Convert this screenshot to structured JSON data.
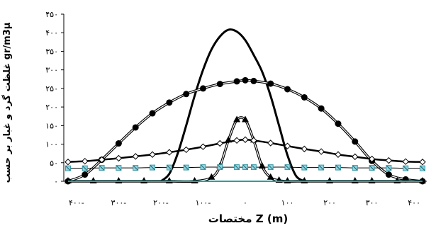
{
  "chart_data": {
    "type": "line",
    "title": "",
    "xlabel": "مختصات Z (m)",
    "ylabel": "غلظت گرد و غبار بر حسب gr/m3µ",
    "xlim": [
      -430,
      430
    ],
    "ylim": [
      0,
      450
    ],
    "x_ticks": [
      -400,
      -300,
      -200,
      -100,
      0,
      100,
      200,
      300,
      400
    ],
    "x_tick_labels": [
      "۴۰۰-",
      "۳۰۰-",
      "۲۰۰-",
      "۱۰۰-",
      "۰",
      "۱۰۰",
      "۲۰۰",
      "۳۰۰",
      "۴۰۰"
    ],
    "y_ticks": [
      0,
      50,
      100,
      150,
      200,
      250,
      300,
      350,
      400,
      450
    ],
    "y_tick_labels": [
      "۰",
      "۵۰",
      "۱۰۰",
      "۱۵۰",
      "۲۰۰",
      "۲۵۰",
      "۳۰۰",
      "۳۵۰",
      "۴۰۰",
      "۴۵۰"
    ],
    "grid": false,
    "legend": "none",
    "series": [
      {
        "style": "thick-line",
        "color": "#000000",
        "x": [
          -200,
          -180,
          -160,
          -140,
          -120,
          -100,
          -80,
          -60,
          -40,
          -20,
          0,
          20,
          40,
          60,
          80,
          100,
          120,
          140
        ],
        "values": [
          0,
          20,
          75,
          150,
          230,
          300,
          355,
          390,
          408,
          403,
          380,
          340,
          295,
          230,
          150,
          70,
          15,
          0
        ]
      },
      {
        "style": "double-line-circle",
        "color": "#000000",
        "x": [
          -420,
          -380,
          -340,
          -300,
          -260,
          -220,
          -180,
          -140,
          -100,
          -60,
          -20,
          0,
          20,
          60,
          100,
          140,
          180,
          220,
          260,
          300,
          340,
          380,
          420
        ],
        "values": [
          0,
          18,
          58,
          102,
          145,
          183,
          212,
          235,
          250,
          262,
          269,
          272,
          270,
          263,
          248,
          226,
          196,
          155,
          107,
          55,
          18,
          5,
          0
        ]
      },
      {
        "style": "double-line-triangle",
        "color": "#000000",
        "x": [
          -420,
          -360,
          -300,
          -240,
          -180,
          -120,
          -80,
          -60,
          -40,
          -20,
          0,
          20,
          40,
          60,
          80,
          100,
          140,
          200,
          260,
          300,
          360,
          420
        ],
        "values": [
          0,
          0,
          0,
          0,
          0,
          0,
          10,
          40,
          110,
          165,
          165,
          110,
          40,
          10,
          2,
          0,
          0,
          0,
          0,
          0,
          0,
          0
        ]
      },
      {
        "style": "thick-line-diamond",
        "color": "#000000",
        "x": [
          -420,
          -380,
          -340,
          -300,
          -260,
          -220,
          -180,
          -140,
          -100,
          -60,
          -20,
          0,
          20,
          60,
          100,
          140,
          180,
          220,
          260,
          300,
          340,
          380,
          420
        ],
        "values": [
          52,
          54,
          58,
          62,
          67,
          72,
          78,
          85,
          93,
          102,
          110,
          112,
          110,
          103,
          95,
          87,
          80,
          72,
          66,
          60,
          56,
          53,
          52
        ]
      },
      {
        "style": "line-cross-square",
        "color": "#3a9aa8",
        "x": [
          -420,
          -380,
          -340,
          -300,
          -260,
          -220,
          -180,
          -140,
          -100,
          -60,
          -20,
          0,
          20,
          60,
          100,
          140,
          180,
          220,
          260,
          300,
          340,
          380,
          420
        ],
        "values": [
          35,
          35,
          36,
          36,
          36,
          37,
          37,
          37,
          38,
          38,
          38,
          38,
          38,
          38,
          38,
          37,
          37,
          37,
          36,
          36,
          36,
          35,
          35
        ]
      },
      {
        "style": "teal-line",
        "color": "#2aa0a0",
        "x": [
          -420,
          420
        ],
        "values": [
          0,
          0
        ]
      }
    ]
  }
}
